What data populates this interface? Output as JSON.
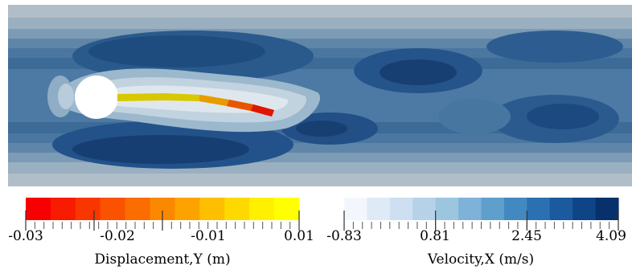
{
  "figure": {
    "description_type": "fluid-structure interaction simulation field",
    "flow_field": {
      "quantity_title": "Velocity,X (m/s)"
    }
  },
  "colorbars": {
    "displacement": {
      "title": "Displacement,Y (m)",
      "range": [
        -0.03,
        0.01
      ],
      "ticks": [
        "-0.03",
        "-0.02",
        "-0.01",
        "0.01"
      ],
      "tick_values": [
        -0.03,
        -0.02,
        -0.01,
        0.01
      ],
      "colors": [
        "#f70000",
        "#f81b00",
        "#f93600",
        "#fa5200",
        "#fb6d00",
        "#fc8800",
        "#fda300",
        "#fdbf00",
        "#fed900",
        "#fff000",
        "#ffff00"
      ]
    },
    "velocity": {
      "title": "Velocity,X (m/s)",
      "range": [
        -0.83,
        4.09
      ],
      "ticks": [
        "-0.83",
        "0.81",
        "2.45",
        "4.09"
      ],
      "tick_values": [
        -0.83,
        0.81,
        2.45,
        4.09
      ],
      "colors": [
        "#f3f7fd",
        "#dfeaf7",
        "#cddff1",
        "#b5d2e8",
        "#9cc5e0",
        "#7fb2d8",
        "#5f9fcc",
        "#4389c1",
        "#2b70b0",
        "#1b5a9e",
        "#0f4486",
        "#08306b"
      ]
    }
  }
}
